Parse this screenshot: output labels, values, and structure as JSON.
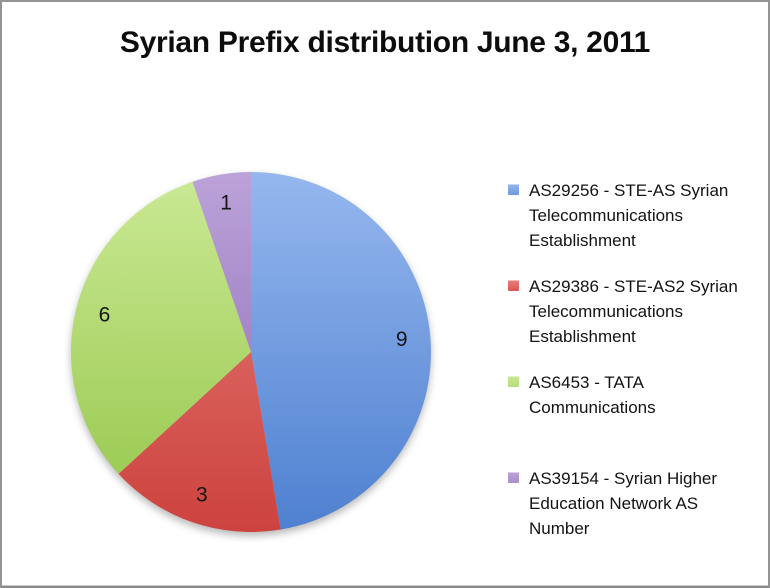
{
  "frame": {
    "background": "#ffffff",
    "border_color": "#949494"
  },
  "chart_data": {
    "type": "pie",
    "title": "Syrian Prefix distribution June 3, 2011",
    "legend_position": "right",
    "start_angle_deg": 0,
    "direction": "clockwise",
    "slices": [
      {
        "label": "AS29256 - STE-AS Syrian Telecommunications Establishment",
        "value": 9,
        "color": "#6C99E0",
        "color_light": "#95B7EE",
        "color_dark": "#4E80D0"
      },
      {
        "label": "AS29386 - STE-AS2 Syrian Telecommunications Establishment",
        "value": 3,
        "color": "#DC5753",
        "color_light": "#E77F7A",
        "color_dark": "#CC423E"
      },
      {
        "label": "AS6453 - TATA Communications",
        "value": 6,
        "color": "#B5DE78",
        "color_light": "#CBE995",
        "color_dark": "#94C649"
      },
      {
        "label": "AS39154 - Syrian Higher Education Network AS Number",
        "value": 1,
        "color": "#A98FC9",
        "color_light": "#BBA2D8",
        "color_dark": "#8A67B6"
      }
    ]
  }
}
